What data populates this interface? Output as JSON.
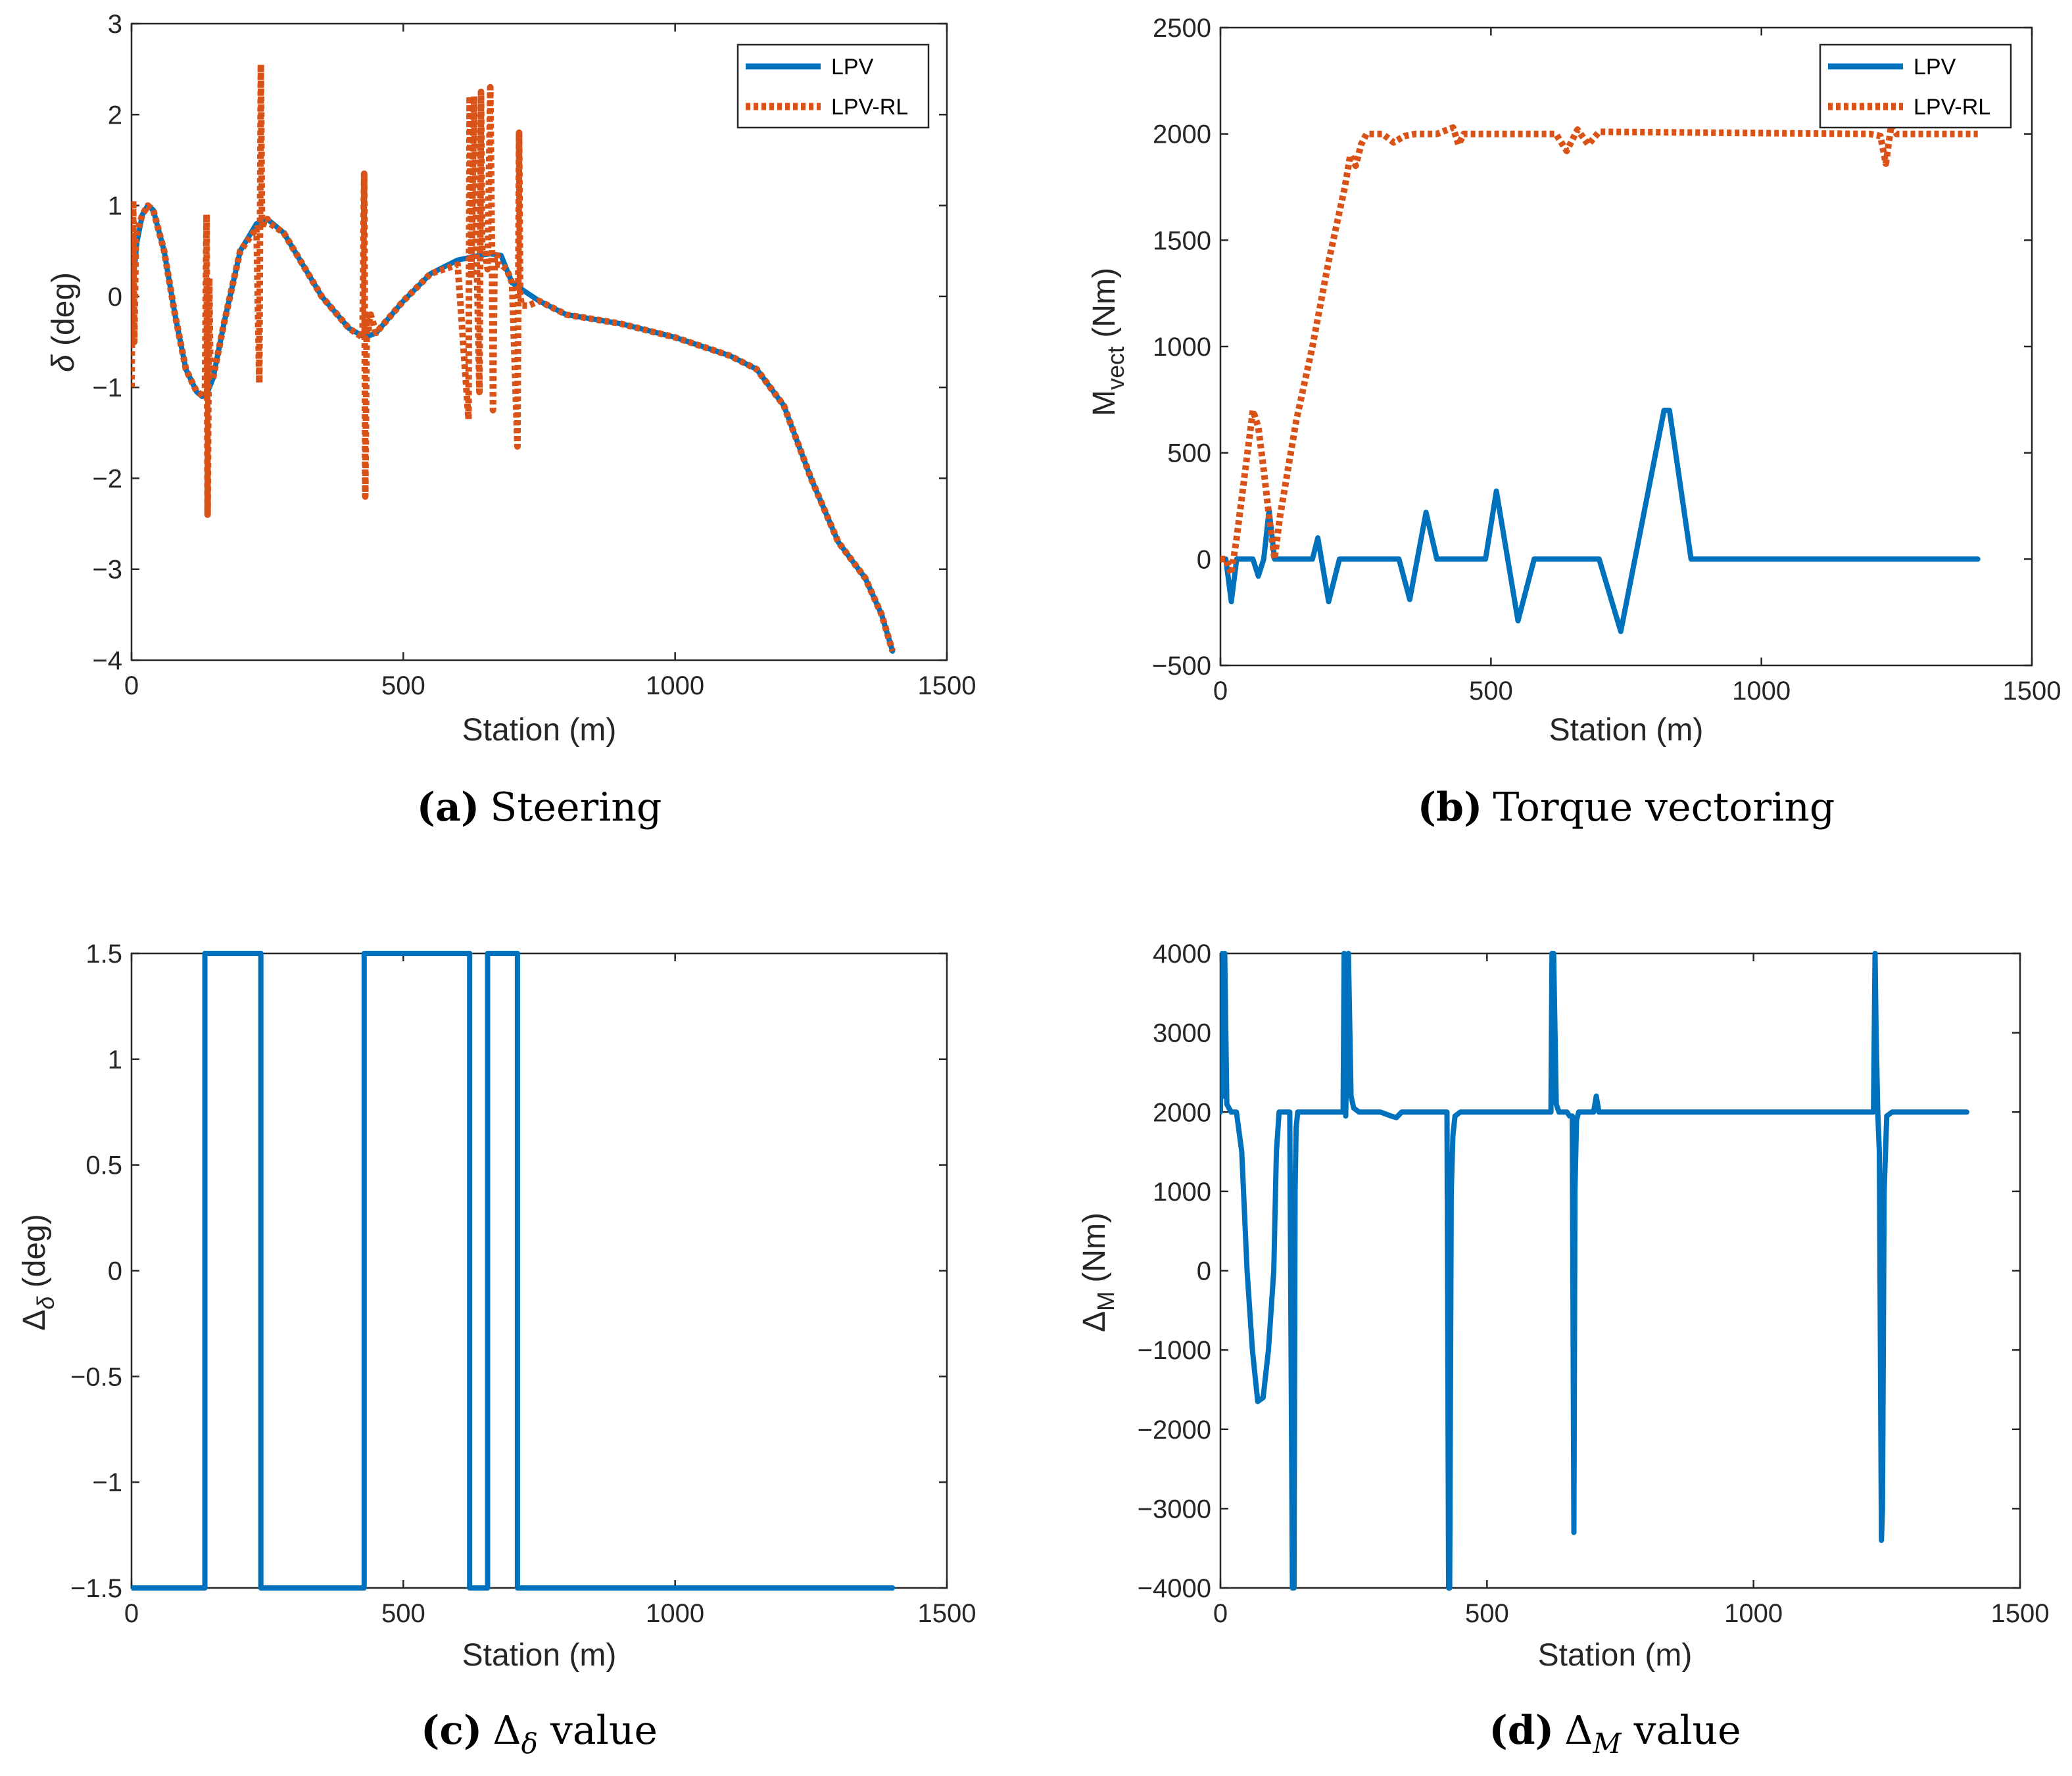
{
  "colors": {
    "lpv": "#0072bd",
    "lpv_rl": "#d95319",
    "axis": "#262626"
  },
  "chart_data": [
    {
      "id": "a",
      "type": "line",
      "caption_letter": "(a)",
      "caption_text": "Steering",
      "xlabel": "Station (m)",
      "ylabel_symbol": "δ",
      "ylabel_unit": " (deg)",
      "xlim": [
        0,
        1500
      ],
      "ylim": [
        -4,
        3
      ],
      "xticks": [
        0,
        500,
        1000,
        1500
      ],
      "xtick_labels": [
        "0",
        "500",
        "1000",
        "1500"
      ],
      "yticks": [
        -4,
        -3,
        -2,
        -1,
        0,
        1,
        2,
        3
      ],
      "ytick_labels": [
        "−4",
        "−3",
        "−2",
        "−1",
        "0",
        "1",
        "2",
        "3"
      ],
      "legend": {
        "position": "top-right",
        "entries": [
          "LPV",
          "LPV-RL"
        ]
      },
      "series": [
        {
          "name": "LPV",
          "style": "solid",
          "x": [
            0,
            10,
            20,
            30,
            40,
            60,
            80,
            100,
            120,
            130,
            140,
            150,
            170,
            200,
            230,
            250,
            280,
            300,
            350,
            400,
            430,
            450,
            500,
            550,
            600,
            640,
            660,
            680,
            700,
            750,
            800,
            900,
            1000,
            1100,
            1150,
            1200,
            1250,
            1300,
            1350,
            1380,
            1400
          ],
          "y": [
            0,
            0.6,
            0.9,
            1.0,
            0.95,
            0.5,
            -0.2,
            -0.8,
            -1.05,
            -1.1,
            -1.05,
            -0.9,
            -0.3,
            0.5,
            0.8,
            0.85,
            0.7,
            0.5,
            0.0,
            -0.35,
            -0.45,
            -0.4,
            -0.05,
            0.25,
            0.4,
            0.45,
            0.47,
            0.45,
            0.15,
            -0.05,
            -0.2,
            -0.3,
            -0.45,
            -0.65,
            -0.8,
            -1.2,
            -2.0,
            -2.7,
            -3.1,
            -3.5,
            -3.9
          ]
        },
        {
          "name": "LPV-RL",
          "style": "dotted",
          "x": [
            0,
            3,
            5,
            8,
            10,
            20,
            30,
            40,
            60,
            80,
            100,
            120,
            135,
            138,
            140,
            143,
            145,
            150,
            170,
            200,
            230,
            235,
            238,
            240,
            243,
            245,
            250,
            255,
            280,
            300,
            350,
            400,
            425,
            428,
            430,
            433,
            435,
            440,
            450,
            500,
            550,
            600,
            620,
            622,
            625,
            630,
            635,
            640,
            643,
            645,
            650,
            655,
            660,
            663,
            665,
            668,
            670,
            673,
            675,
            680,
            690,
            700,
            710,
            713,
            715,
            718,
            720,
            730,
            750,
            800,
            900,
            1000,
            1100,
            1150,
            1200,
            1250,
            1300,
            1350,
            1380,
            1400
          ],
          "y": [
            -1.0,
            1.05,
            -0.5,
            0.6,
            0.7,
            0.9,
            1.0,
            0.95,
            0.5,
            -0.2,
            -0.8,
            -1.05,
            -1.1,
            0.9,
            -2.4,
            0.2,
            -0.9,
            -0.9,
            -0.3,
            0.5,
            0.75,
            -0.95,
            2.55,
            0.75,
            0.8,
            0.85,
            0.85,
            0.8,
            0.7,
            0.5,
            0.0,
            -0.35,
            -0.45,
            1.35,
            -2.2,
            -0.2,
            -0.4,
            -0.2,
            -0.4,
            -0.05,
            0.25,
            0.35,
            -1.35,
            2.2,
            0.2,
            2.2,
            0.45,
            -1.05,
            2.25,
            0.5,
            0.5,
            0.3,
            2.3,
            0.5,
            -1.25,
            0.45,
            0.45,
            0.45,
            0.35,
            0.35,
            0.3,
            0.15,
            -1.65,
            1.8,
            0.0,
            -0.1,
            -0.1,
            -0.1,
            -0.05,
            -0.2,
            -0.3,
            -0.45,
            -0.65,
            -0.8,
            -1.2,
            -2.0,
            -2.7,
            -3.1,
            -3.5,
            -3.9
          ]
        }
      ]
    },
    {
      "id": "b",
      "type": "line",
      "caption_letter": "(b)",
      "caption_text": "Torque vectoring",
      "xlabel": "Station (m)",
      "ylabel_symbol": "M",
      "ylabel_sub": "vect",
      "ylabel_unit": " (Nm)",
      "xlim": [
        0,
        1500
      ],
      "ylim": [
        -500,
        2500
      ],
      "xticks": [
        0,
        500,
        1000,
        1500
      ],
      "xtick_labels": [
        "0",
        "500",
        "1000",
        "1500"
      ],
      "yticks": [
        -500,
        0,
        500,
        1000,
        1500,
        2000,
        2500
      ],
      "ytick_labels": [
        "−500",
        "0",
        "500",
        "1000",
        "1500",
        "2000",
        "2500"
      ],
      "legend": {
        "position": "top-right",
        "entries": [
          "LPV",
          "LPV-RL"
        ]
      },
      "series": [
        {
          "name": "LPV",
          "style": "solid",
          "x": [
            0,
            10,
            20,
            30,
            60,
            70,
            80,
            90,
            100,
            110,
            170,
            180,
            200,
            220,
            330,
            350,
            380,
            400,
            490,
            510,
            550,
            580,
            700,
            740,
            820,
            830,
            870,
            880,
            1400
          ],
          "y": [
            0,
            0,
            -200,
            0,
            0,
            -80,
            0,
            230,
            0,
            0,
            0,
            100,
            -200,
            0,
            0,
            -190,
            220,
            0,
            0,
            320,
            -290,
            0,
            0,
            -340,
            700,
            700,
            0,
            0,
            0
          ]
        },
        {
          "name": "LPV-RL",
          "style": "dotted",
          "x": [
            0,
            10,
            20,
            30,
            50,
            60,
            70,
            80,
            90,
            100,
            110,
            140,
            170,
            200,
            230,
            240,
            250,
            260,
            270,
            300,
            320,
            340,
            360,
            400,
            430,
            440,
            450,
            600,
            620,
            640,
            660,
            680,
            700,
            1200,
            1220,
            1230,
            1240,
            1250,
            1400
          ],
          "y": [
            0,
            0,
            -70,
            100,
            500,
            700,
            620,
            420,
            200,
            0,
            200,
            650,
            1000,
            1400,
            1750,
            1900,
            1850,
            1950,
            2000,
            2000,
            1960,
            1990,
            2000,
            2000,
            2030,
            1950,
            2000,
            2000,
            2000,
            1920,
            2020,
            1950,
            2010,
            2000,
            1990,
            1860,
            2040,
            2000,
            2000
          ]
        }
      ]
    },
    {
      "id": "c",
      "type": "line",
      "caption_letter": "(c)",
      "caption_symbol": "Δ",
      "caption_sub": "δ",
      "caption_text": " value",
      "xlabel": "Station (m)",
      "ylabel_symbol": "Δ",
      "ylabel_sub": "δ",
      "ylabel_unit": " (deg)",
      "xlim": [
        0,
        1500
      ],
      "ylim": [
        -1.5,
        1.5
      ],
      "xticks": [
        0,
        500,
        1000,
        1500
      ],
      "xtick_labels": [
        "0",
        "500",
        "1000",
        "1500"
      ],
      "yticks": [
        -1.5,
        -1,
        -0.5,
        0,
        0.5,
        1,
        1.5
      ],
      "ytick_labels": [
        "−1.5",
        "−1",
        "−0.5",
        "0",
        "0.5",
        "1",
        "1.5"
      ],
      "series": [
        {
          "name": "Δδ",
          "style": "solid",
          "x": [
            0,
            135,
            135,
            238,
            238,
            428,
            428,
            622,
            622,
            655,
            655,
            710,
            710,
            1400
          ],
          "y": [
            -1.5,
            -1.5,
            1.5,
            1.5,
            -1.5,
            -1.5,
            1.5,
            1.5,
            -1.5,
            -1.5,
            1.5,
            1.5,
            -1.5,
            -1.5
          ]
        }
      ]
    },
    {
      "id": "d",
      "type": "line",
      "caption_letter": "(d)",
      "caption_symbol": "Δ",
      "caption_sub": "M",
      "caption_text": " value",
      "xlabel": "Station (m)",
      "ylabel_symbol": "Δ",
      "ylabel_sub": "M",
      "ylabel_unit": " (Nm)",
      "xlim": [
        0,
        1500
      ],
      "ylim": [
        -4000,
        4000
      ],
      "xticks": [
        0,
        500,
        1000,
        1500
      ],
      "xtick_labels": [
        "0",
        "500",
        "1000",
        "1500"
      ],
      "yticks": [
        -4000,
        -3000,
        -2000,
        -1000,
        0,
        1000,
        2000,
        3000,
        4000
      ],
      "ytick_labels": [
        "−4000",
        "−3000",
        "−2000",
        "−1000",
        "0",
        "1000",
        "2000",
        "3000",
        "4000"
      ],
      "series": [
        {
          "name": "ΔM",
          "style": "solid",
          "x": [
            0,
            3,
            5,
            8,
            12,
            20,
            30,
            40,
            50,
            60,
            70,
            80,
            90,
            100,
            105,
            110,
            115,
            120,
            130,
            135,
            138,
            140,
            142,
            145,
            150,
            160,
            200,
            230,
            232,
            235,
            240,
            245,
            250,
            260,
            280,
            300,
            320,
            330,
            340,
            400,
            425,
            428,
            430,
            433,
            436,
            440,
            450,
            600,
            620,
            622,
            625,
            630,
            635,
            640,
            650,
            655,
            660,
            663,
            665,
            668,
            672,
            680,
            700,
            705,
            710,
            715,
            1220,
            1225,
            1228,
            1230,
            1233,
            1236,
            1240,
            1242,
            1245,
            1250,
            1260,
            1400
          ],
          "y": [
            2000,
            4000,
            2200,
            4000,
            2100,
            2000,
            2000,
            1500,
            0,
            -1000,
            -1650,
            -1600,
            -1000,
            0,
            1500,
            2000,
            2000,
            2000,
            2000,
            -4000,
            -4000,
            1000,
            1800,
            2000,
            2000,
            2000,
            2000,
            2000,
            4000,
            1950,
            4000,
            2200,
            2050,
            2000,
            2000,
            2000,
            1950,
            1930,
            2000,
            2000,
            2000,
            -4000,
            -4000,
            1000,
            1700,
            1950,
            2000,
            2000,
            2000,
            4000,
            4000,
            2100,
            2000,
            2000,
            2000,
            1950,
            1950,
            -3300,
            1000,
            1900,
            2000,
            2000,
            2000,
            2200,
            2000,
            2000,
            2000,
            2000,
            4000,
            3000,
            2000,
            1500,
            -3400,
            -3000,
            1000,
            1950,
            2000,
            2000
          ]
        }
      ]
    }
  ]
}
